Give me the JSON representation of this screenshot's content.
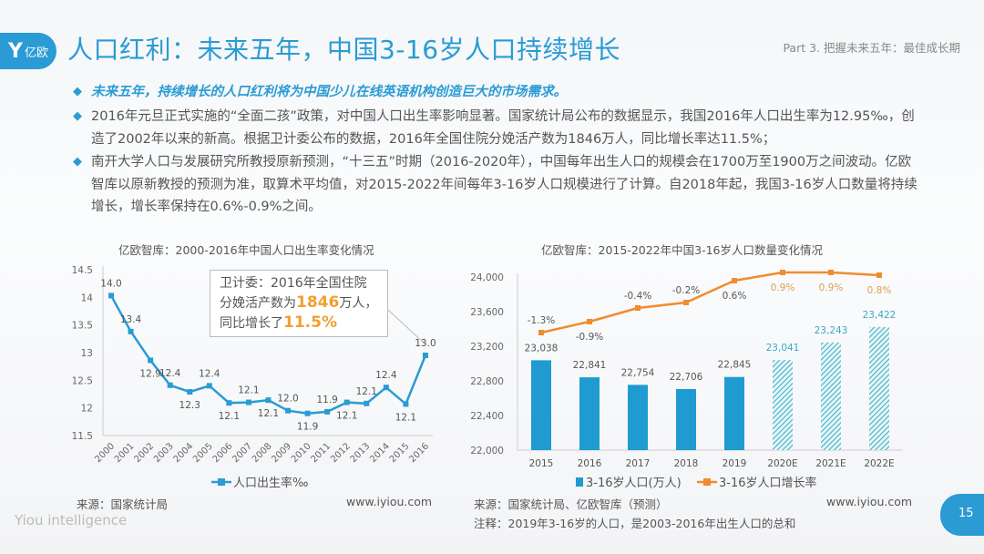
{
  "header": {
    "logo_text": "亿欧",
    "title": "人口红利：未来五年，中国3-16岁人口持续增长",
    "part": "Part 3. 把握未来五年：最佳成长期"
  },
  "bullets": [
    "未来五年，持续增长的人口红利将为中国少儿在线英语机构创造巨大的市场需求。",
    "2016年元旦正式实施的“全面二孩”政策，对中国人口出生率影响显著。国家统计局公布的数据显示，我国2016年人口出生率为12.95‰，创造了2002年以来的新高。根据卫计委公布的数据，2016年全国住院分娩活产数为1846万人，同比增长率达11.5%；",
    "南开大学人口与发展研究所教授原新预测，“十三五”时期（2016-2020年），中国每年出生人口的规模会在1700万至1900万之间波动。亿欧智库以原新教授的预测为准，取算术平均值，对2015-2022年间每年3-16岁人口规模进行了计算。自2018年起，我国3-16岁人口数量将持续增长，增长率保持在0.6%-0.9%之间。"
  ],
  "callout": {
    "pre": "卫计委：2016年全国住院分娩活产数为",
    "num": "1846",
    "mid": "万人，同比增长了",
    "pct": "11.5%"
  },
  "chart_data": [
    {
      "type": "line",
      "title": "亿欧智库：2000-2016年中国人口出生率变化情况",
      "categories": [
        "2000",
        "2001",
        "2002",
        "2003",
        "2004",
        "2005",
        "2006",
        "2007",
        "2008",
        "2009",
        "2010",
        "2011",
        "2012",
        "2013",
        "2014",
        "2015",
        "2016"
      ],
      "series": [
        {
          "name": "人口出生率‰",
          "values": [
            14.03,
            13.38,
            12.86,
            12.41,
            12.29,
            12.4,
            12.09,
            12.1,
            12.14,
            11.95,
            11.9,
            11.93,
            12.1,
            12.08,
            12.37,
            12.07,
            12.95
          ],
          "labels": [
            "14.0",
            "13.4",
            "12.9",
            "12.4",
            "12.3",
            "12.4",
            "12.1",
            "12.1",
            "12.1",
            "12.0",
            "11.9",
            "11.9",
            "12.1",
            "12.1",
            "12.4",
            "12.1",
            "13.0"
          ],
          "color": "#2a9bd4"
        }
      ],
      "ylim": [
        11.5,
        14.5
      ],
      "yticks": [
        "11.5",
        "12",
        "12.5",
        "13",
        "13.5",
        "14",
        "14.5"
      ],
      "grid": false,
      "legend": "bottom"
    },
    {
      "type": "bar+line",
      "title": "亿欧智库：2015-2022年中国3-16岁人口数量变化情况",
      "categories": [
        "2015",
        "2016",
        "2017",
        "2018",
        "2019",
        "2020E",
        "2021E",
        "2022E"
      ],
      "series": [
        {
          "name": "3-16岁人口(万人)",
          "type": "bar",
          "values": [
            23038,
            22841,
            22754,
            22706,
            22845,
            23041,
            23243,
            23422
          ],
          "labels": [
            "23,038",
            "22,841",
            "22,754",
            "22,706",
            "22,845",
            "23,041",
            "23,243",
            "23,422"
          ],
          "color": "#1f9bd1",
          "forecast_from": "2020E"
        },
        {
          "name": "3-16岁人口增长率",
          "type": "line",
          "values": [
            -1.3,
            -0.9,
            -0.4,
            -0.2,
            0.6,
            0.9,
            0.9,
            0.8
          ],
          "labels": [
            "-1.3%",
            "-0.9%",
            "-0.4%",
            "-0.2%",
            "0.6%",
            "0.9%",
            "0.9%",
            "0.8%"
          ],
          "color": "#f08c2e"
        }
      ],
      "ylim": [
        22000,
        24000
      ],
      "yticks": [
        "22,000",
        "22,400",
        "22,800",
        "23,200",
        "23,600",
        "24,000"
      ],
      "grid": false,
      "legend": "bottom"
    }
  ],
  "footer": {
    "source_left": "来源：国家统计局",
    "url_left": "www.iyiou.com",
    "source_right": "来源：国家统计局、亿欧智库（预测）",
    "url_right": "www.iyiou.com",
    "note": "注释：2019年3-16岁的人口，是2003-2016年出生人口的总和",
    "brand": "Yiou intelligence",
    "page": "15"
  },
  "colors": {
    "accent": "#2a9bd4",
    "orange": "#f08c2e",
    "highlight": "#f0a030"
  }
}
